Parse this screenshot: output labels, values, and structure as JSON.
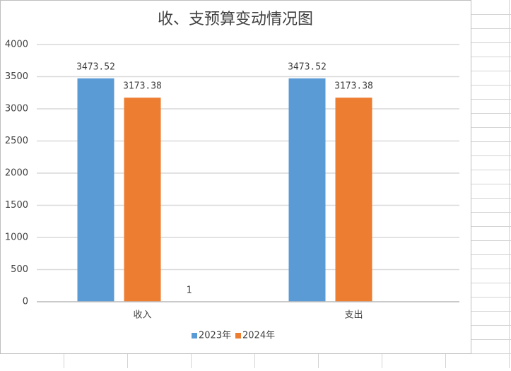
{
  "chart_data": {
    "type": "bar",
    "title": "收、支预算变动情况图",
    "categories": [
      "收入",
      "支出"
    ],
    "series": [
      {
        "name": "2023年",
        "color": "#5b9bd5",
        "values": [
          3473.52,
          3473.52
        ]
      },
      {
        "name": "2024年",
        "color": "#ed7d31",
        "values": [
          3173.38,
          3173.38
        ]
      },
      {
        "color": "#a5a5a5",
        "values": [
          1,
          null
        ]
      }
    ],
    "ylim": [
      0,
      4000
    ],
    "yticks": [
      0,
      500,
      1000,
      1500,
      2000,
      2500,
      3000,
      3500,
      4000
    ],
    "grid": true,
    "legend": "bottom"
  }
}
